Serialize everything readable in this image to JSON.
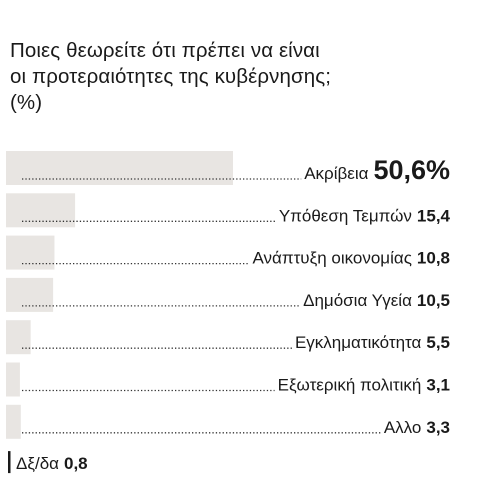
{
  "title_line1": "Ποιες θεωρείτε ότι πρέπει να είναι",
  "title_line2": "οι προτεραιότητες της κυβέρνησης;",
  "unit_note": "(%)",
  "colors": {
    "bar": "#e8e5e2",
    "text": "#1a1a1a",
    "dots": "#333333",
    "marker": "#1a1a1a"
  },
  "chart_data": {
    "type": "bar",
    "orientation": "horizontal",
    "unit": "%",
    "categories": [
      "Ακρίβεια",
      "Υπόθεση Τεμπών",
      "Ανάπτυξη οικονομίας",
      "Δημόσια Υγεία",
      "Εγκληματικότητα",
      "Εξωτερική πολιτική",
      "Αλλο",
      "Δξ/δα"
    ],
    "value_labels": [
      "50,6%",
      "15,4",
      "10,8",
      "10,5",
      "5,5",
      "3,1",
      "3,3",
      "0,8"
    ],
    "values": [
      50.6,
      15.4,
      10.8,
      10.5,
      5.5,
      3.1,
      3.3,
      0.8
    ]
  }
}
